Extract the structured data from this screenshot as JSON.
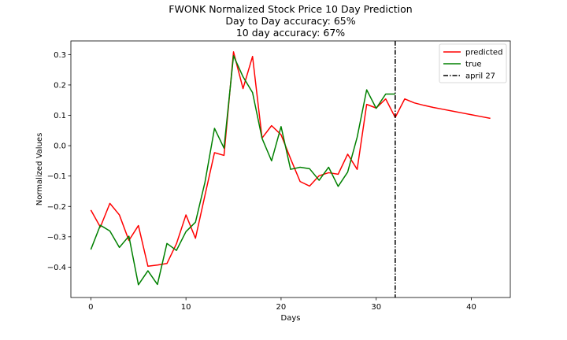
{
  "chart_data": {
    "type": "line",
    "title": [
      "FWONK Normalized Stock Price 10 Day Prediction",
      "Day to Day accuracy: 65%",
      "10 day accuracy: 67%"
    ],
    "xlabel": "Days",
    "ylabel": "Normalized Values",
    "xlim": [
      -2.1,
      44.1
    ],
    "ylim": [
      -0.5,
      0.345
    ],
    "xticks": [
      0,
      10,
      20,
      30,
      40
    ],
    "yticks": [
      -0.4,
      -0.3,
      -0.2,
      -0.1,
      0.0,
      0.1,
      0.2,
      0.3
    ],
    "xtick_labels": [
      "0",
      "10",
      "20",
      "30",
      "40"
    ],
    "ytick_labels": [
      "−0.4",
      "−0.3",
      "−0.2",
      "−0.1",
      "0.0",
      "0.1",
      "0.2",
      "0.3"
    ],
    "grid": false,
    "legend_position": "top-right",
    "series": [
      {
        "name": "predicted",
        "color": "#ff0000",
        "x": [
          0,
          1,
          2,
          3,
          4,
          5,
          6,
          7,
          8,
          9,
          10,
          11,
          12,
          13,
          14,
          15,
          16,
          17,
          18,
          19,
          20,
          21,
          22,
          23,
          24,
          25,
          26,
          27,
          28,
          29,
          30,
          31,
          32,
          33,
          34,
          35,
          36,
          37,
          38,
          39,
          40,
          41,
          42
        ],
        "y": [
          -0.212,
          -0.268,
          -0.19,
          -0.228,
          -0.312,
          -0.263,
          -0.397,
          -0.393,
          -0.388,
          -0.323,
          -0.228,
          -0.305,
          -0.163,
          -0.023,
          -0.032,
          0.309,
          0.188,
          0.294,
          0.025,
          0.066,
          0.036,
          -0.043,
          -0.118,
          -0.133,
          -0.099,
          -0.089,
          -0.094,
          -0.028,
          -0.078,
          0.136,
          0.124,
          0.154,
          0.093,
          0.154,
          0.141,
          0.133,
          0.126,
          0.12,
          0.114,
          0.108,
          0.102,
          0.096,
          0.09
        ]
      },
      {
        "name": "true",
        "color": "#008000",
        "x": [
          0,
          1,
          2,
          3,
          4,
          5,
          6,
          7,
          8,
          9,
          10,
          11,
          12,
          13,
          14,
          15,
          16,
          17,
          18,
          19,
          20,
          21,
          22,
          23,
          24,
          25,
          26,
          27,
          28,
          29,
          30,
          31,
          32
        ],
        "y": [
          -0.342,
          -0.262,
          -0.281,
          -0.335,
          -0.298,
          -0.458,
          -0.412,
          -0.457,
          -0.322,
          -0.345,
          -0.283,
          -0.252,
          -0.12,
          0.057,
          -0.008,
          0.296,
          0.227,
          0.175,
          0.024,
          -0.05,
          0.063,
          -0.078,
          -0.071,
          -0.076,
          -0.114,
          -0.071,
          -0.134,
          -0.087,
          0.028,
          0.184,
          0.123,
          0.17,
          0.17
        ]
      }
    ],
    "vlines": [
      {
        "name": "april 27",
        "x": 32,
        "color": "#000000",
        "style": "dash-dot"
      }
    ]
  }
}
